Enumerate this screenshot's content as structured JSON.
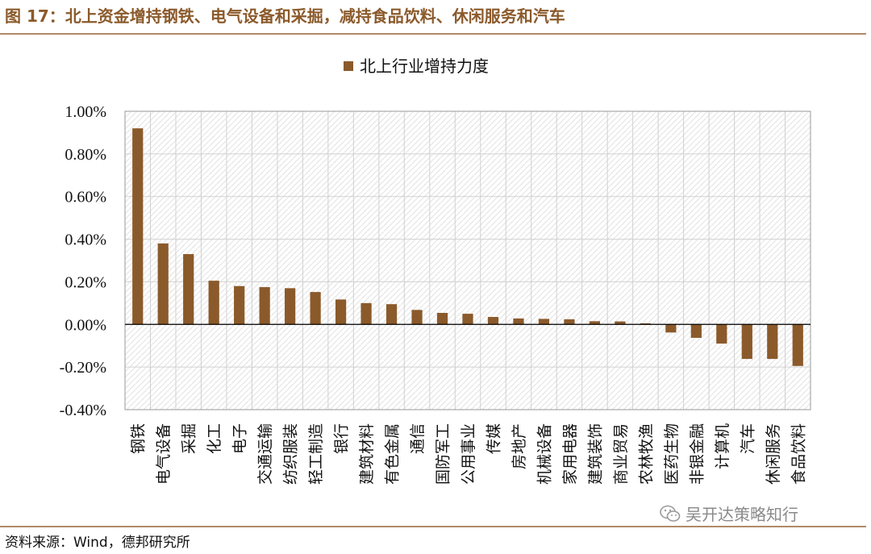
{
  "header": {
    "title": "图 17：北上资金增持钢铁、电气设备和采掘，减持食品饮料、休闲服务和汽车"
  },
  "footer": {
    "source": "资料来源：Wind，德邦研究所"
  },
  "watermark": {
    "text": "吴开达策略知行",
    "icon": "wechat-icon"
  },
  "colors": {
    "bar": "#8B5A2B",
    "accent": "#8B5A2B",
    "grid": "#d0d0d0"
  },
  "chart_data": {
    "type": "bar",
    "legend": {
      "label": "北上行业增持力度",
      "position": "top-center"
    },
    "ylim": [
      -0.4,
      1.0
    ],
    "yticks": [
      "1.00%",
      "0.80%",
      "0.60%",
      "0.40%",
      "0.20%",
      "0.00%",
      "-0.20%",
      "-0.40%"
    ],
    "grid": true,
    "categories": [
      "钢铁",
      "电气设备",
      "采掘",
      "化工",
      "电子",
      "交通运输",
      "纺织服装",
      "轻工制造",
      "银行",
      "建筑材料",
      "有色金属",
      "通信",
      "国防军工",
      "公用事业",
      "传媒",
      "房地产",
      "机械设备",
      "家用电器",
      "建筑装饰",
      "商业贸易",
      "农林牧渔",
      "医药生物",
      "非银金融",
      "计算机",
      "汽车",
      "休闲服务",
      "食品饮料"
    ],
    "values": [
      0.92,
      0.38,
      0.33,
      0.205,
      0.18,
      0.175,
      0.17,
      0.152,
      0.117,
      0.1,
      0.095,
      0.068,
      0.054,
      0.05,
      0.035,
      0.028,
      0.026,
      0.024,
      0.015,
      0.014,
      0.005,
      -0.038,
      -0.063,
      -0.09,
      -0.162,
      -0.162,
      -0.195
    ],
    "unit": "%"
  }
}
